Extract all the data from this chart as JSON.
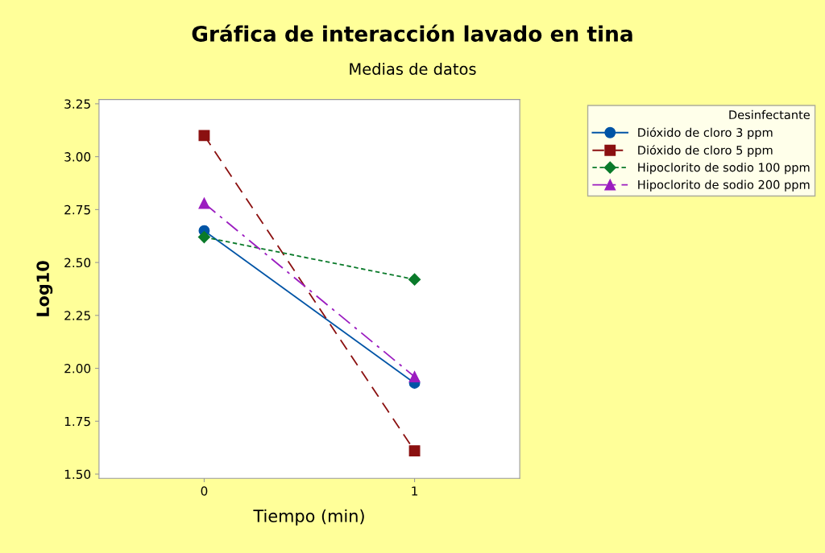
{
  "chart_data": {
    "type": "line",
    "title": "Gráfica de interacción lavado en tina",
    "subtitle": "Medias de datos",
    "xlabel": "Tiempo (min)",
    "ylabel": "Log10",
    "legend_title": "Desinfectante",
    "legend": "top right",
    "categories": [
      "0",
      "1"
    ],
    "ylim": [
      1.48,
      3.27
    ],
    "yticks": [
      {
        "value": 1.5,
        "label": "1.50"
      },
      {
        "value": 1.75,
        "label": "1.75"
      },
      {
        "value": 2.0,
        "label": "2.00"
      },
      {
        "value": 2.25,
        "label": "2.25"
      },
      {
        "value": 2.5,
        "label": "2.50"
      },
      {
        "value": 2.75,
        "label": "2.75"
      },
      {
        "value": 3.0,
        "label": "3.00"
      },
      {
        "value": 3.25,
        "label": "3.25"
      }
    ],
    "grid": false,
    "series": [
      {
        "name": "Dióxido de cloro 3 ppm",
        "color": "#0054a6",
        "marker": "circle",
        "line_style": "solid",
        "values": [
          2.65,
          1.93
        ]
      },
      {
        "name": "Dióxido de cloro 5 ppm",
        "color": "#8b1010",
        "marker": "square",
        "line_style": "dashed",
        "values": [
          3.1,
          1.61
        ]
      },
      {
        "name": "Hipoclorito de sodio 100 ppm",
        "color": "#0a7a2a",
        "marker": "diamond",
        "line_style": "dotted",
        "values": [
          2.62,
          2.42
        ]
      },
      {
        "name": "Hipoclorito de sodio 200 ppm",
        "color": "#9b1cc0",
        "marker": "triangle",
        "line_style": "dashdot",
        "values": [
          2.78,
          1.96
        ]
      }
    ]
  }
}
